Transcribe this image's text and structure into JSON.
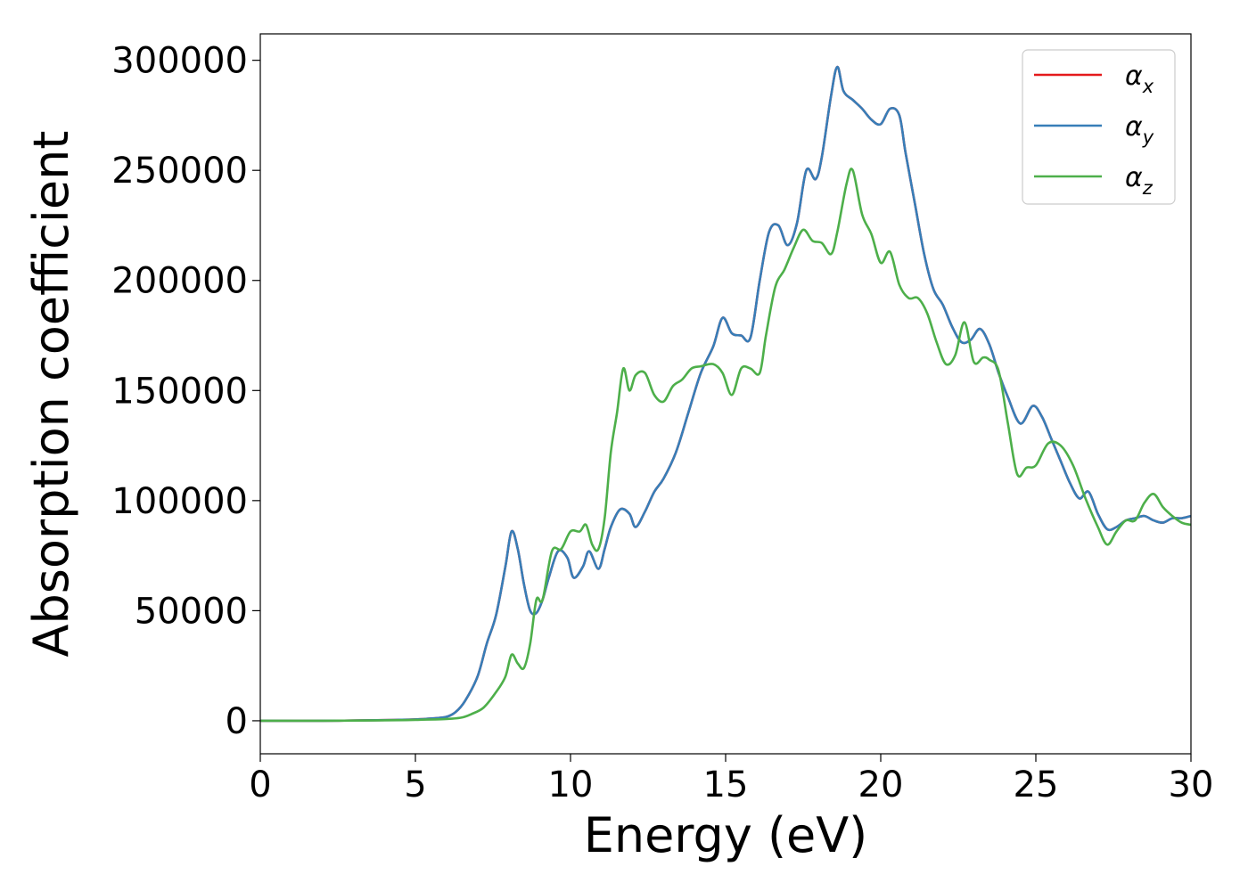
{
  "chart_data": {
    "type": "line",
    "title": "",
    "xlabel": "Energy (eV)",
    "ylabel": "Absorption coefficient",
    "xlim": [
      0,
      30
    ],
    "ylim": [
      -15000,
      312000
    ],
    "xticks": [
      0,
      5,
      10,
      15,
      20,
      25,
      30
    ],
    "yticks": [
      0,
      50000,
      100000,
      150000,
      200000,
      250000,
      300000
    ],
    "grid": false,
    "legend_position": "top-right",
    "series": [
      {
        "name": "α",
        "subscript": "x",
        "color": "#e41a1c",
        "x": [
          0,
          2,
          4,
          5,
          5.5,
          6,
          6.3,
          6.6,
          7,
          7.3,
          7.6,
          7.9,
          8.1,
          8.3,
          8.5,
          8.7,
          8.9,
          9.1,
          9.3,
          9.6,
          9.9,
          10.1,
          10.4,
          10.6,
          10.9,
          11.1,
          11.3,
          11.6,
          11.9,
          12.1,
          12.4,
          12.7,
          13,
          13.4,
          13.8,
          14.2,
          14.6,
          14.9,
          15.2,
          15.5,
          15.8,
          16.1,
          16.4,
          16.7,
          17,
          17.3,
          17.6,
          17.9,
          18.1,
          18.4,
          18.6,
          18.8,
          19.1,
          19.4,
          19.7,
          20,
          20.3,
          20.6,
          20.8,
          21.1,
          21.4,
          21.7,
          22,
          22.3,
          22.6,
          22.9,
          23.2,
          23.5,
          23.8,
          24.1,
          24.5,
          24.9,
          25.2,
          25.5,
          25.8,
          26.1,
          26.4,
          26.7,
          27,
          27.3,
          27.6,
          27.9,
          28.2,
          28.5,
          28.8,
          29.1,
          29.4,
          29.7,
          30
        ],
        "values": [
          0,
          0,
          300,
          600,
          1000,
          1800,
          4000,
          9000,
          20000,
          35000,
          48000,
          70000,
          86000,
          78000,
          62000,
          50000,
          49000,
          55000,
          65000,
          77000,
          74000,
          65000,
          70000,
          77000,
          69000,
          78000,
          88000,
          96000,
          94000,
          88000,
          95000,
          104000,
          110000,
          122000,
          140000,
          158000,
          170000,
          183000,
          176000,
          175000,
          174000,
          200000,
          222000,
          225000,
          216000,
          226000,
          250000,
          246000,
          256000,
          284000,
          297000,
          286000,
          282000,
          278000,
          273000,
          271000,
          278000,
          275000,
          258000,
          235000,
          212000,
          196000,
          189000,
          179000,
          172000,
          173000,
          178000,
          171000,
          158000,
          147000,
          135000,
          143000,
          138000,
          128000,
          118000,
          108000,
          101000,
          104000,
          94000,
          87000,
          88000,
          91000,
          92000,
          93000,
          91000,
          90000,
          92000,
          92000,
          93000
        ]
      },
      {
        "name": "α",
        "subscript": "y",
        "color": "#377eb8",
        "x": [
          0,
          2,
          4,
          5,
          5.5,
          6,
          6.3,
          6.6,
          7,
          7.3,
          7.6,
          7.9,
          8.1,
          8.3,
          8.5,
          8.7,
          8.9,
          9.1,
          9.3,
          9.6,
          9.9,
          10.1,
          10.4,
          10.6,
          10.9,
          11.1,
          11.3,
          11.6,
          11.9,
          12.1,
          12.4,
          12.7,
          13,
          13.4,
          13.8,
          14.2,
          14.6,
          14.9,
          15.2,
          15.5,
          15.8,
          16.1,
          16.4,
          16.7,
          17,
          17.3,
          17.6,
          17.9,
          18.1,
          18.4,
          18.6,
          18.8,
          19.1,
          19.4,
          19.7,
          20,
          20.3,
          20.6,
          20.8,
          21.1,
          21.4,
          21.7,
          22,
          22.3,
          22.6,
          22.9,
          23.2,
          23.5,
          23.8,
          24.1,
          24.5,
          24.9,
          25.2,
          25.5,
          25.8,
          26.1,
          26.4,
          26.7,
          27,
          27.3,
          27.6,
          27.9,
          28.2,
          28.5,
          28.8,
          29.1,
          29.4,
          29.7,
          30
        ],
        "values": [
          0,
          0,
          300,
          600,
          1000,
          1800,
          4000,
          9000,
          20000,
          35000,
          48000,
          70000,
          86000,
          78000,
          62000,
          50000,
          49000,
          55000,
          65000,
          77000,
          74000,
          65000,
          70000,
          77000,
          69000,
          78000,
          88000,
          96000,
          94000,
          88000,
          95000,
          104000,
          110000,
          122000,
          140000,
          158000,
          170000,
          183000,
          176000,
          175000,
          174000,
          200000,
          222000,
          225000,
          216000,
          226000,
          250000,
          246000,
          256000,
          284000,
          297000,
          286000,
          282000,
          278000,
          273000,
          271000,
          278000,
          275000,
          258000,
          235000,
          212000,
          196000,
          189000,
          179000,
          172000,
          173000,
          178000,
          171000,
          158000,
          147000,
          135000,
          143000,
          138000,
          128000,
          118000,
          108000,
          101000,
          104000,
          94000,
          87000,
          88000,
          91000,
          92000,
          93000,
          91000,
          90000,
          92000,
          92000,
          93000
        ]
      },
      {
        "name": "α",
        "subscript": "z",
        "color": "#4daf4a",
        "x": [
          0,
          2,
          4,
          5,
          6,
          6.5,
          6.8,
          7.2,
          7.6,
          7.9,
          8.1,
          8.3,
          8.5,
          8.7,
          8.9,
          9.1,
          9.4,
          9.7,
          10,
          10.3,
          10.5,
          10.7,
          10.9,
          11.1,
          11.3,
          11.5,
          11.7,
          11.9,
          12.1,
          12.4,
          12.7,
          13,
          13.3,
          13.6,
          13.9,
          14.2,
          14.6,
          14.9,
          15.2,
          15.5,
          15.8,
          16.1,
          16.3,
          16.6,
          16.9,
          17.2,
          17.5,
          17.8,
          18.1,
          18.4,
          18.6,
          18.9,
          19.1,
          19.4,
          19.7,
          20,
          20.3,
          20.6,
          20.9,
          21.2,
          21.5,
          21.8,
          22.1,
          22.4,
          22.7,
          23,
          23.3,
          23.5,
          23.8,
          24.1,
          24.4,
          24.7,
          25,
          25.4,
          25.8,
          26.2,
          26.6,
          27,
          27.3,
          27.6,
          27.9,
          28.2,
          28.5,
          28.8,
          29.1,
          29.4,
          29.7,
          30
        ],
        "values": [
          0,
          0,
          200,
          400,
          800,
          1500,
          3000,
          6000,
          13000,
          20000,
          30000,
          26000,
          24000,
          35000,
          55000,
          55000,
          77000,
          78000,
          86000,
          86000,
          89000,
          80000,
          78000,
          92000,
          122000,
          140000,
          160000,
          150000,
          157000,
          158000,
          148000,
          145000,
          152000,
          155000,
          160000,
          161000,
          162000,
          158000,
          148000,
          160000,
          160000,
          158000,
          175000,
          197000,
          205000,
          215000,
          223000,
          218000,
          217000,
          212000,
          222000,
          244000,
          250000,
          230000,
          221000,
          208000,
          213000,
          198000,
          192000,
          192000,
          185000,
          172000,
          162000,
          166000,
          181000,
          163000,
          165000,
          164000,
          159000,
          135000,
          112000,
          115000,
          116000,
          126000,
          125000,
          116000,
          101000,
          88000,
          80000,
          86000,
          91000,
          91000,
          99000,
          103000,
          97000,
          93000,
          90000,
          89000
        ]
      }
    ]
  }
}
